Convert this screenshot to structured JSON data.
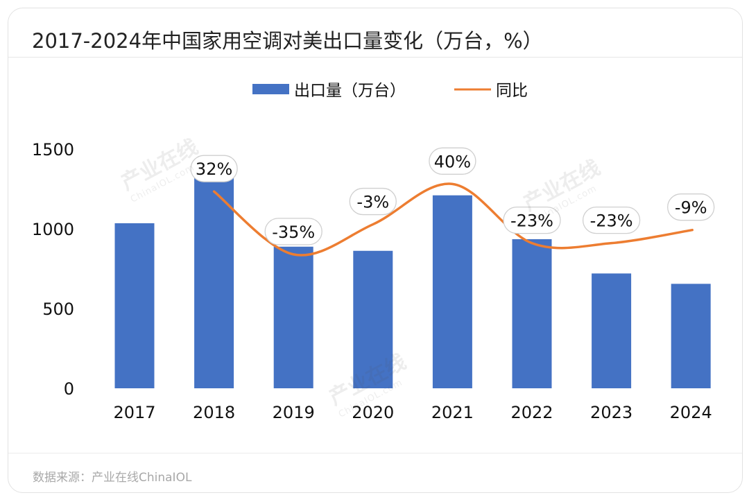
{
  "title": "2017-2024年中国家用空调对美出口量变化（万台，%）",
  "source": "数据来源：产业在线ChinaIOL",
  "watermark": {
    "main": "产业在线",
    "sub": "ChinaIOL.com"
  },
  "colors": {
    "bar": "#4472C4",
    "line": "#ED7D31",
    "label_border": "#cfcfcf",
    "text": "#111111"
  },
  "chart_data": {
    "type": "bar",
    "categories": [
      "2017",
      "2018",
      "2019",
      "2020",
      "2021",
      "2022",
      "2023",
      "2024"
    ],
    "series": [
      {
        "name": "出口量（万台）",
        "type": "bar",
        "axis": "left",
        "values": [
          1035,
          1368,
          888,
          862,
          1210,
          935,
          720,
          655
        ]
      },
      {
        "name": "同比",
        "type": "line",
        "axis": "right",
        "values": [
          null,
          32,
          -35,
          -3,
          40,
          -23,
          -23,
          -9
        ],
        "labels": [
          "",
          "32%",
          "-35%",
          "-3%",
          "40%",
          "-23%",
          "-23%",
          "-9%"
        ]
      }
    ],
    "yticks": [
      "0",
      "500",
      "1000",
      "1500"
    ],
    "ylim": [
      0,
      1500
    ],
    "y2lim": [
      -120,
      120
    ],
    "legend_position": "top-center",
    "grid": false
  }
}
